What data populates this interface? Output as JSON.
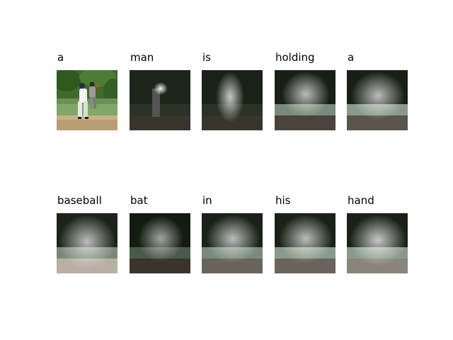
{
  "words": [
    "a",
    "man",
    "is",
    "holding",
    "a",
    "baseball",
    "bat",
    "in",
    "his",
    "hand"
  ]
}
